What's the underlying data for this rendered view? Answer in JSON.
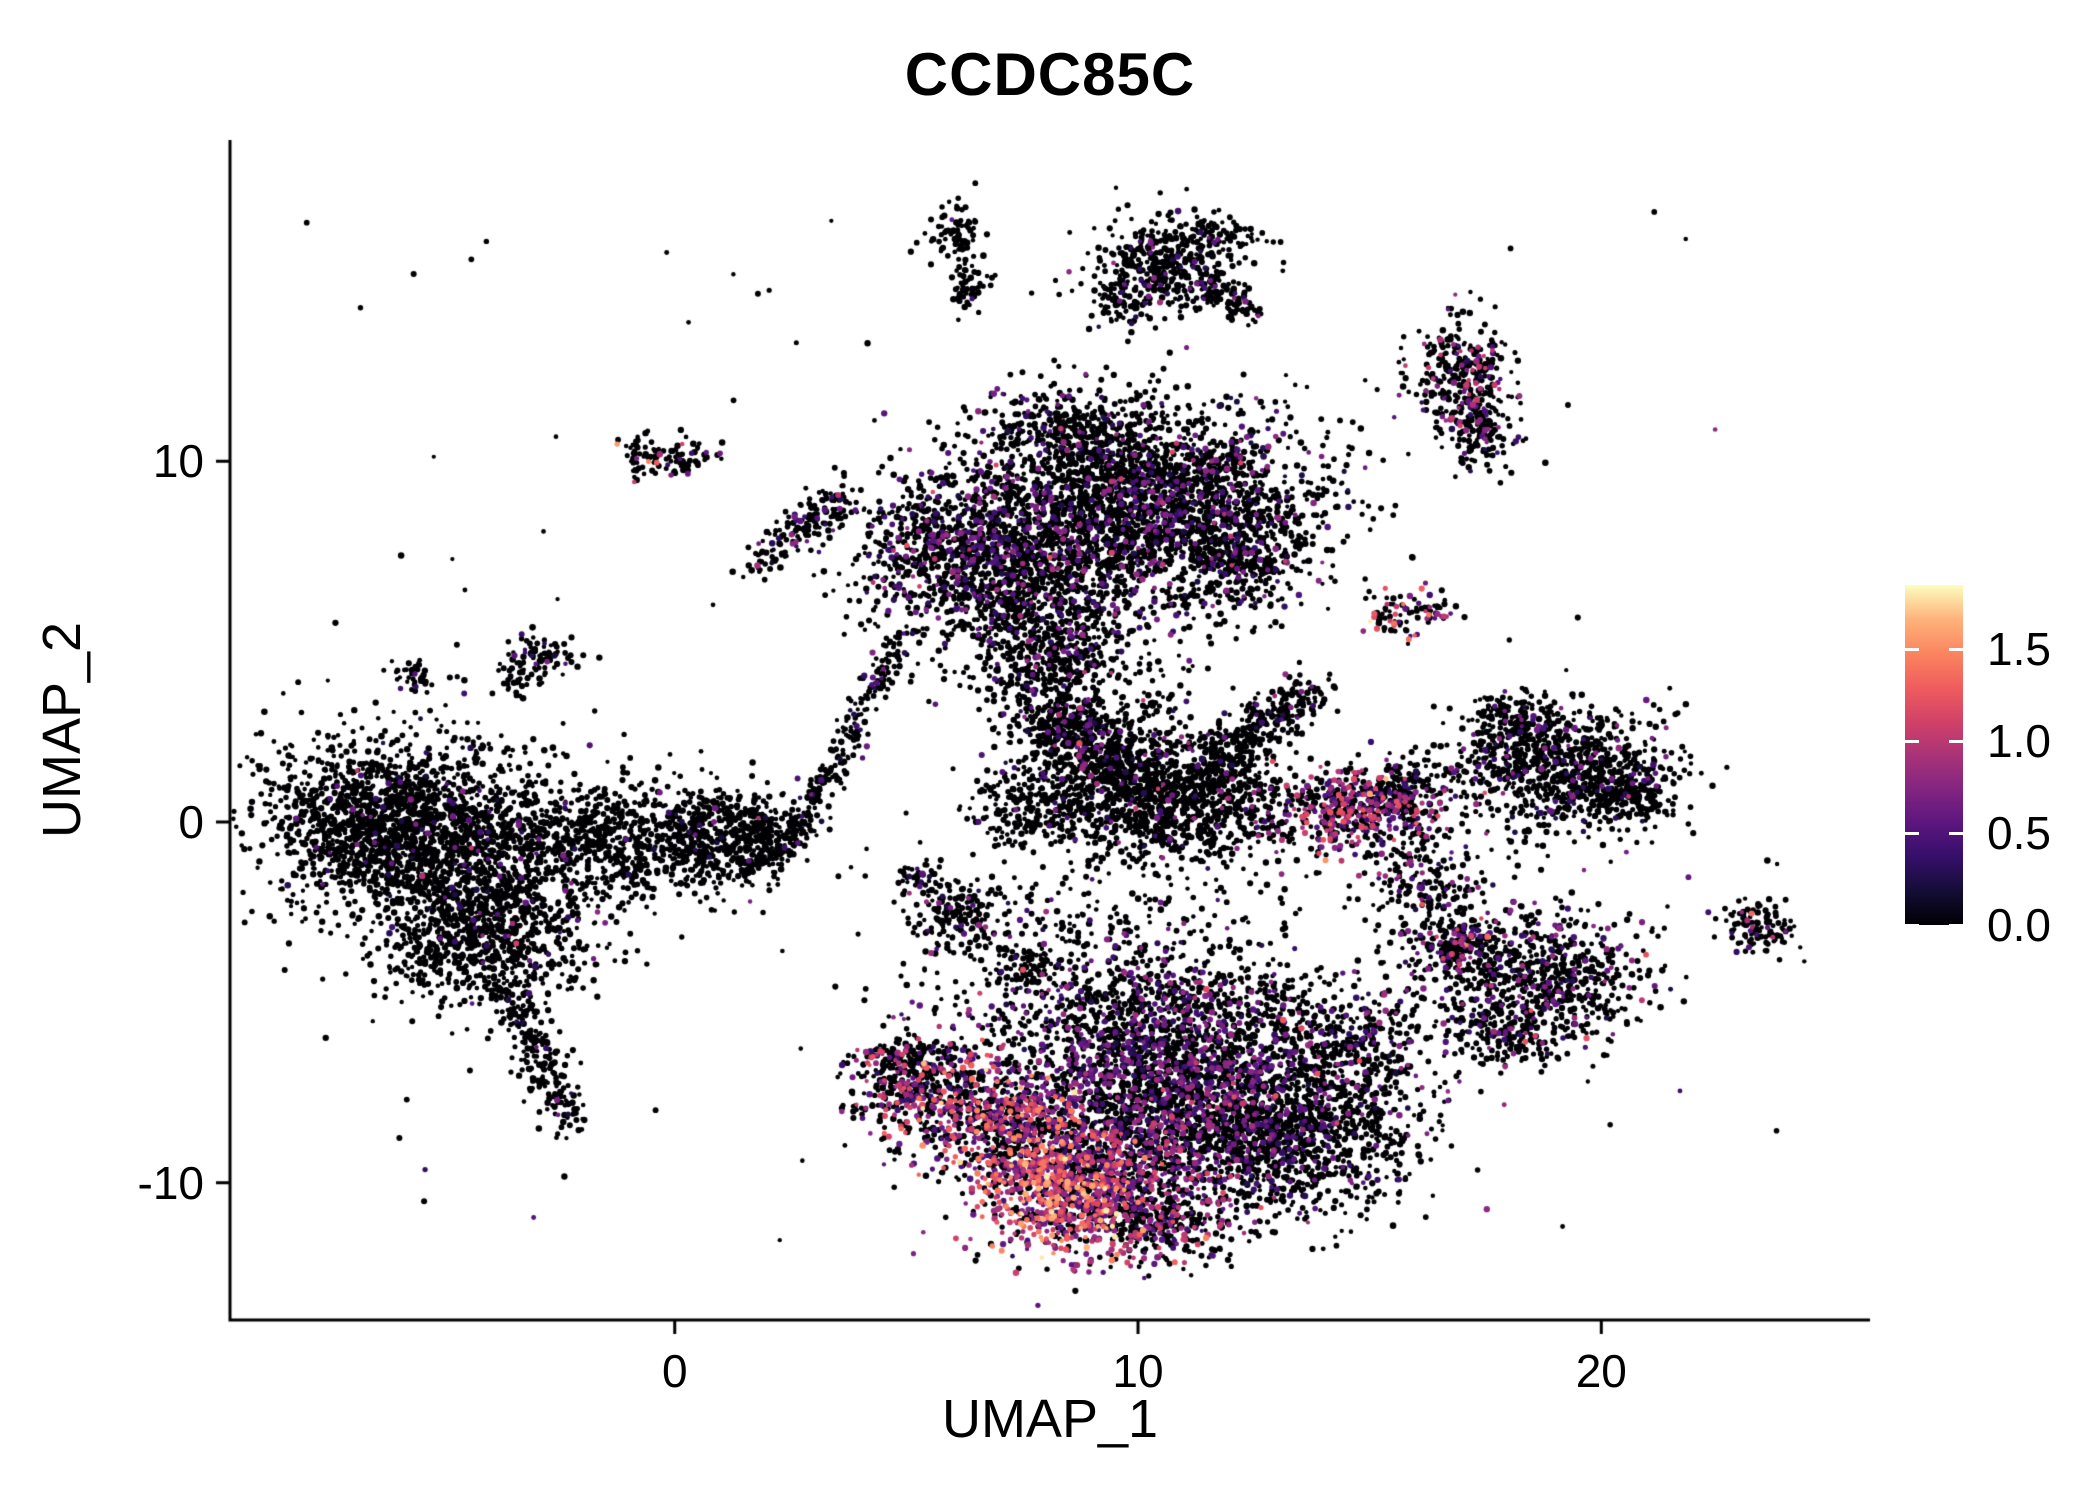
{
  "chart_data": {
    "type": "scatter",
    "title": "CCDC85C",
    "xlabel": "UMAP_1",
    "ylabel": "UMAP_2",
    "xlim": [
      -9.6,
      25.8
    ],
    "ylim": [
      -13.8,
      18.9
    ],
    "grid": false,
    "legend_position": "right",
    "x_ticks": [
      {
        "value": 0,
        "label": "0"
      },
      {
        "value": 10,
        "label": "10"
      },
      {
        "value": 20,
        "label": "20"
      }
    ],
    "y_ticks": [
      {
        "value": 10,
        "label": "10"
      },
      {
        "value": 0,
        "label": "0"
      },
      {
        "value": -10,
        "label": "-10"
      }
    ],
    "colorbar": {
      "domain": [
        0,
        1.85
      ],
      "colormap": "magma",
      "ticks": [
        {
          "value": 1.5,
          "label": "1.5"
        },
        {
          "value": 1.0,
          "label": "1.0"
        },
        {
          "value": 0.5,
          "label": "0.5"
        },
        {
          "value": 0.0,
          "label": "0.0"
        }
      ],
      "colormap_stops": [
        [
          0.0,
          0,
          0,
          4
        ],
        [
          0.1,
          20,
          13,
          53
        ],
        [
          0.2,
          53,
          15,
          106
        ],
        [
          0.3,
          92,
          22,
          127
        ],
        [
          0.4,
          131,
          37,
          129
        ],
        [
          0.5,
          170,
          51,
          119
        ],
        [
          0.6,
          210,
          66,
          103
        ],
        [
          0.7,
          240,
          93,
          94
        ],
        [
          0.8,
          251,
          133,
          96
        ],
        [
          0.9,
          254,
          179,
          123
        ],
        [
          1.0,
          252,
          253,
          191
        ]
      ]
    },
    "point_radius": 2.6,
    "clusters": [
      {
        "name": "left-main-upper",
        "type": "gauss",
        "cx": -6.4,
        "cy": 0.2,
        "sx": 1.3,
        "sy": 1.1,
        "n": 1100,
        "rate": 0.03,
        "mean": 0.5
      },
      {
        "name": "left-main-core",
        "type": "gauss",
        "cx": -4.6,
        "cy": -1.0,
        "sx": 1.6,
        "sy": 1.4,
        "n": 1500,
        "rate": 0.04,
        "mean": 0.5
      },
      {
        "name": "left-main-lower",
        "type": "gauss",
        "cx": -3.8,
        "cy": -3.3,
        "sx": 1.0,
        "sy": 1.0,
        "n": 450,
        "rate": 0.05,
        "mean": 0.55
      },
      {
        "name": "left-tail",
        "type": "streak",
        "x1": -3.6,
        "y1": -4.6,
        "x2": -2.3,
        "y2": -8.3,
        "w": 0.28,
        "n": 230,
        "rate": 0.04,
        "mean": 0.5
      },
      {
        "name": "left-bridge",
        "type": "gauss",
        "cx": -1.6,
        "cy": -0.6,
        "sx": 0.8,
        "sy": 0.8,
        "n": 350,
        "rate": 0.03,
        "mean": 0.5
      },
      {
        "name": "left-hook",
        "type": "gauss",
        "cx": 0.7,
        "cy": -0.5,
        "sx": 0.9,
        "sy": 0.7,
        "n": 550,
        "rate": 0.03,
        "mean": 0.5
      },
      {
        "name": "left-hook-tip",
        "type": "gauss",
        "cx": 1.9,
        "cy": -0.1,
        "sx": 0.4,
        "sy": 0.35,
        "n": 120,
        "rate": 0.03,
        "mean": 0.5
      },
      {
        "name": "left-below-specks",
        "type": "gauss",
        "cx": -5.2,
        "cy": -3.9,
        "sx": 0.5,
        "sy": 0.4,
        "n": 90,
        "rate": 0.02,
        "mean": 0.5
      },
      {
        "name": "top-main-right",
        "type": "gauss",
        "cx": 10.1,
        "cy": 8.9,
        "sx": 1.8,
        "sy": 1.35,
        "n": 2500,
        "rate": 0.16,
        "mean": 0.55
      },
      {
        "name": "top-main-left",
        "type": "gauss",
        "cx": 6.4,
        "cy": 7.6,
        "sx": 1.25,
        "sy": 1.05,
        "n": 1000,
        "rate": 0.22,
        "mean": 0.6
      },
      {
        "name": "top-main-bottom",
        "type": "gauss",
        "cx": 7.8,
        "cy": 5.9,
        "sx": 1.3,
        "sy": 0.95,
        "n": 650,
        "rate": 0.14,
        "mean": 0.6
      },
      {
        "name": "top-main-crown",
        "type": "gauss",
        "cx": 8.4,
        "cy": 10.9,
        "sx": 0.9,
        "sy": 0.5,
        "n": 260,
        "rate": 0.1,
        "mean": 0.5
      },
      {
        "name": "top-main-taildown",
        "type": "gauss",
        "cx": 8.1,
        "cy": 4.3,
        "sx": 0.7,
        "sy": 0.9,
        "n": 260,
        "rate": 0.12,
        "mean": 0.6
      },
      {
        "name": "top-scatter-below",
        "type": "gauss",
        "cx": 9.3,
        "cy": 3.4,
        "sx": 1.1,
        "sy": 1.0,
        "n": 200,
        "rate": 0.1,
        "mean": 0.7
      },
      {
        "name": "top-main-se-lobe",
        "type": "gauss",
        "cx": 12.3,
        "cy": 7.2,
        "sx": 0.8,
        "sy": 0.8,
        "n": 300,
        "rate": 0.12,
        "mean": 0.55
      },
      {
        "name": "mid-core",
        "type": "gauss",
        "cx": 10.6,
        "cy": 0.6,
        "sx": 1.5,
        "sy": 0.85,
        "n": 1250,
        "rate": 0.05,
        "mean": 0.6
      },
      {
        "name": "mid-upper",
        "type": "gauss",
        "cx": 9.2,
        "cy": 1.9,
        "sx": 0.85,
        "sy": 0.6,
        "n": 400,
        "rate": 0.05,
        "mean": 0.6
      },
      {
        "name": "mid-arm",
        "type": "streak",
        "x1": 11.6,
        "y1": 1.6,
        "x2": 13.8,
        "y2": 3.7,
        "w": 0.32,
        "n": 320,
        "rate": 0.06,
        "mean": 0.6
      },
      {
        "name": "mid-bump",
        "type": "gauss",
        "cx": 8.3,
        "cy": 2.7,
        "sx": 0.5,
        "sy": 0.4,
        "n": 140,
        "rate": 0.05,
        "mean": 0.5
      },
      {
        "name": "mid-left-bit",
        "type": "gauss",
        "cx": 7.4,
        "cy": 0.4,
        "sx": 0.5,
        "sy": 0.5,
        "n": 130,
        "rate": 0.05,
        "mean": 0.5
      },
      {
        "name": "bottom-core",
        "type": "gauss",
        "cx": 10.9,
        "cy": -7.2,
        "sx": 2.1,
        "sy": 1.5,
        "n": 2700,
        "rate": 0.28,
        "mean": 0.6
      },
      {
        "name": "bottom-right-lobe",
        "type": "gauss",
        "cx": 13.4,
        "cy": -8.7,
        "sx": 1.3,
        "sy": 1.1,
        "n": 850,
        "rate": 0.1,
        "mean": 0.5
      },
      {
        "name": "bottom-mid-hot",
        "type": "gauss",
        "cx": 9.6,
        "cy": -9.9,
        "sx": 1.2,
        "sy": 1.0,
        "n": 750,
        "rate": 0.5,
        "mean": 0.8
      },
      {
        "name": "bottom-hotspot",
        "type": "gauss",
        "cx": 8.3,
        "cy": -10.4,
        "sx": 0.85,
        "sy": 0.85,
        "n": 520,
        "rate": 0.8,
        "mean": 1.15,
        "max": 1.8
      },
      {
        "name": "bottom-hotspot2",
        "type": "gauss",
        "cx": 7.4,
        "cy": -8.7,
        "sx": 0.8,
        "sy": 0.8,
        "n": 430,
        "rate": 0.65,
        "mean": 1.05
      },
      {
        "name": "bottom-left-wing",
        "type": "gauss",
        "cx": 5.9,
        "cy": -7.7,
        "sx": 1.0,
        "sy": 0.8,
        "n": 480,
        "rate": 0.45,
        "mean": 0.9
      },
      {
        "name": "bottom-left-tip",
        "type": "gauss",
        "cx": 4.9,
        "cy": -6.8,
        "sx": 0.6,
        "sy": 0.5,
        "n": 190,
        "rate": 0.3,
        "mean": 0.8
      },
      {
        "name": "bottom-top-fringe",
        "type": "gauss",
        "cx": 9.8,
        "cy": -4.9,
        "sx": 2.2,
        "sy": 0.6,
        "n": 380,
        "rate": 0.15,
        "mean": 0.6
      },
      {
        "name": "bottom-under-tail",
        "type": "gauss",
        "cx": 10.6,
        "cy": -11.2,
        "sx": 0.9,
        "sy": 0.5,
        "n": 240,
        "rate": 0.35,
        "mean": 0.8
      },
      {
        "name": "bottom-right-tip",
        "type": "gauss",
        "cx": 14.8,
        "cy": -6.3,
        "sx": 0.7,
        "sy": 0.7,
        "n": 200,
        "rate": 0.15,
        "mean": 0.6
      },
      {
        "name": "right-mid-core",
        "type": "gauss",
        "cx": 19.0,
        "cy": 1.5,
        "sx": 1.25,
        "sy": 0.9,
        "n": 850,
        "rate": 0.1,
        "mean": 0.55
      },
      {
        "name": "right-mid-east",
        "type": "gauss",
        "cx": 20.4,
        "cy": 0.8,
        "sx": 0.6,
        "sy": 0.5,
        "n": 220,
        "rate": 0.08,
        "mean": 0.5
      },
      {
        "name": "right-mid-top",
        "type": "gauss",
        "cx": 18.2,
        "cy": 2.9,
        "sx": 0.5,
        "sy": 0.35,
        "n": 130,
        "rate": 0.1,
        "mean": 0.5
      },
      {
        "name": "pink-cluster",
        "type": "gauss",
        "cx": 14.6,
        "cy": 0.3,
        "sx": 0.8,
        "sy": 0.55,
        "n": 420,
        "rate": 0.55,
        "mean": 0.85
      },
      {
        "name": "pink-fringe",
        "type": "gauss",
        "cx": 15.6,
        "cy": 0.9,
        "sx": 0.6,
        "sy": 0.45,
        "n": 180,
        "rate": 0.25,
        "mean": 0.7
      },
      {
        "name": "pink-south",
        "type": "gauss",
        "cx": 15.9,
        "cy": -1.1,
        "sx": 0.6,
        "sy": 0.6,
        "n": 110,
        "rate": 0.15,
        "mean": 0.6
      },
      {
        "name": "right-low-core",
        "type": "gauss",
        "cx": 18.6,
        "cy": -4.3,
        "sx": 1.2,
        "sy": 0.95,
        "n": 780,
        "rate": 0.16,
        "mean": 0.6
      },
      {
        "name": "right-low-west",
        "type": "gauss",
        "cx": 16.9,
        "cy": -3.5,
        "sx": 0.5,
        "sy": 0.45,
        "n": 180,
        "rate": 0.3,
        "mean": 0.8
      },
      {
        "name": "right-low-south",
        "type": "gauss",
        "cx": 17.9,
        "cy": -5.9,
        "sx": 0.6,
        "sy": 0.4,
        "n": 140,
        "rate": 0.15,
        "mean": 0.6
      },
      {
        "name": "far-right-dot",
        "type": "gauss",
        "cx": 23.4,
        "cy": -2.9,
        "sx": 0.45,
        "sy": 0.35,
        "n": 110,
        "rate": 0.25,
        "mean": 0.7
      },
      {
        "name": "right-top-cluster",
        "type": "gauss",
        "cx": 17.0,
        "cy": 12.3,
        "sx": 0.5,
        "sy": 0.75,
        "n": 330,
        "rate": 0.25,
        "mean": 0.75
      },
      {
        "name": "right-top-tail",
        "type": "gauss",
        "cx": 17.5,
        "cy": 10.6,
        "sx": 0.35,
        "sy": 0.45,
        "n": 110,
        "rate": 0.15,
        "mean": 0.6
      },
      {
        "name": "top-small-main",
        "type": "gauss",
        "cx": 10.6,
        "cy": 15.4,
        "sx": 0.8,
        "sy": 0.65,
        "n": 430,
        "rate": 0.08,
        "mean": 0.55
      },
      {
        "name": "top-small-arm",
        "type": "streak",
        "x1": 11.4,
        "y1": 14.9,
        "x2": 12.4,
        "y2": 14.1,
        "w": 0.2,
        "n": 90,
        "rate": 0.08,
        "mean": 0.5
      },
      {
        "name": "top-small-crown",
        "type": "gauss",
        "cx": 11.6,
        "cy": 16.3,
        "sx": 0.5,
        "sy": 0.25,
        "n": 70,
        "rate": 0.08,
        "mean": 0.5
      },
      {
        "name": "top-small-sw",
        "type": "gauss",
        "cx": 9.6,
        "cy": 14.3,
        "sx": 0.3,
        "sy": 0.3,
        "n": 60,
        "rate": 0.05,
        "mean": 0.5
      },
      {
        "name": "top-tiny-left",
        "type": "gauss",
        "cx": 6.1,
        "cy": 16.3,
        "sx": 0.3,
        "sy": 0.45,
        "n": 80,
        "rate": 0.05,
        "mean": 0.5
      },
      {
        "name": "top-tiny-left2",
        "type": "gauss",
        "cx": 6.4,
        "cy": 14.8,
        "sx": 0.25,
        "sy": 0.3,
        "n": 45,
        "rate": 0.05,
        "mean": 0.5
      },
      {
        "name": "tiny-pair-east",
        "type": "gauss",
        "cx": 0.2,
        "cy": 10.2,
        "sx": 0.35,
        "sy": 0.3,
        "n": 60,
        "rate": 0.12,
        "mean": 0.9
      },
      {
        "name": "tiny-pair-west",
        "type": "gauss",
        "cx": -0.7,
        "cy": 10.1,
        "sx": 0.3,
        "sy": 0.28,
        "n": 50,
        "rate": 0.18,
        "mean": 1.1
      },
      {
        "name": "diag-streak-small",
        "type": "streak",
        "x1": 2.2,
        "y1": 7.6,
        "x2": 3.6,
        "y2": 9.0,
        "w": 0.22,
        "n": 130,
        "rate": 0.15,
        "mean": 0.6
      },
      {
        "name": "diag-streak-dot",
        "type": "gauss",
        "cx": 1.9,
        "cy": 7.2,
        "sx": 0.2,
        "sy": 0.2,
        "n": 30,
        "rate": 0.1,
        "mean": 0.5
      },
      {
        "name": "tiny-nw",
        "type": "gauss",
        "cx": -2.9,
        "cy": 4.6,
        "sx": 0.4,
        "sy": 0.3,
        "n": 80,
        "rate": 0.08,
        "mean": 0.6
      },
      {
        "name": "tiny-nw2",
        "type": "gauss",
        "cx": -3.3,
        "cy": 3.9,
        "sx": 0.25,
        "sy": 0.2,
        "n": 35,
        "rate": 0.05,
        "mean": 0.5
      },
      {
        "name": "tiny-nw3",
        "type": "gauss",
        "cx": -5.6,
        "cy": 4.0,
        "sx": 0.3,
        "sy": 0.25,
        "n": 40,
        "rate": 0.05,
        "mean": 0.5
      },
      {
        "name": "small-center",
        "type": "gauss",
        "cx": 6.2,
        "cy": -2.6,
        "sx": 0.55,
        "sy": 0.45,
        "n": 170,
        "rate": 0.12,
        "mean": 0.6
      },
      {
        "name": "small-center2",
        "type": "gauss",
        "cx": 7.6,
        "cy": -4.0,
        "sx": 0.35,
        "sy": 0.3,
        "n": 70,
        "rate": 0.1,
        "mean": 0.6
      },
      {
        "name": "small-center3",
        "type": "gauss",
        "cx": 5.3,
        "cy": -1.5,
        "sx": 0.3,
        "sy": 0.25,
        "n": 50,
        "rate": 0.1,
        "mean": 0.5
      },
      {
        "name": "long-diag-streak",
        "type": "streak",
        "x1": 2.4,
        "y1": -0.8,
        "x2": 5.0,
        "y2": 5.3,
        "w": 0.18,
        "n": 260,
        "rate": 0.06,
        "mean": 0.5
      },
      {
        "name": "long-diag-base",
        "type": "streak",
        "x1": 1.3,
        "y1": -1.4,
        "x2": 2.4,
        "y2": -0.8,
        "w": 0.15,
        "n": 60,
        "rate": 0.05,
        "mean": 0.5
      },
      {
        "name": "tiny-orange-mid",
        "type": "gauss",
        "cx": 15.6,
        "cy": 5.7,
        "sx": 0.4,
        "sy": 0.35,
        "n": 70,
        "rate": 0.5,
        "mean": 1.0
      },
      {
        "name": "tiny-orange-mid2",
        "type": "gauss",
        "cx": 16.4,
        "cy": 5.9,
        "sx": 0.25,
        "sy": 0.2,
        "n": 30,
        "rate": 0.2,
        "mean": 0.8
      },
      {
        "name": "sparse-right-gap",
        "type": "gauss",
        "cx": 16.3,
        "cy": -1.9,
        "sx": 0.7,
        "sy": 0.6,
        "n": 90,
        "rate": 0.2,
        "mean": 0.6
      },
      {
        "name": "sparse-mid-gap",
        "type": "gauss",
        "cx": 10.0,
        "cy": -2.9,
        "sx": 2.3,
        "sy": 0.8,
        "n": 220,
        "rate": 0.1,
        "mean": 0.6
      },
      {
        "name": "stray-noise",
        "type": "uniform",
        "x1": -8.0,
        "y1": -12.0,
        "x2": 24.0,
        "y2": 17.0,
        "n": 130,
        "rate": 0.06,
        "mean": 0.6
      }
    ]
  }
}
